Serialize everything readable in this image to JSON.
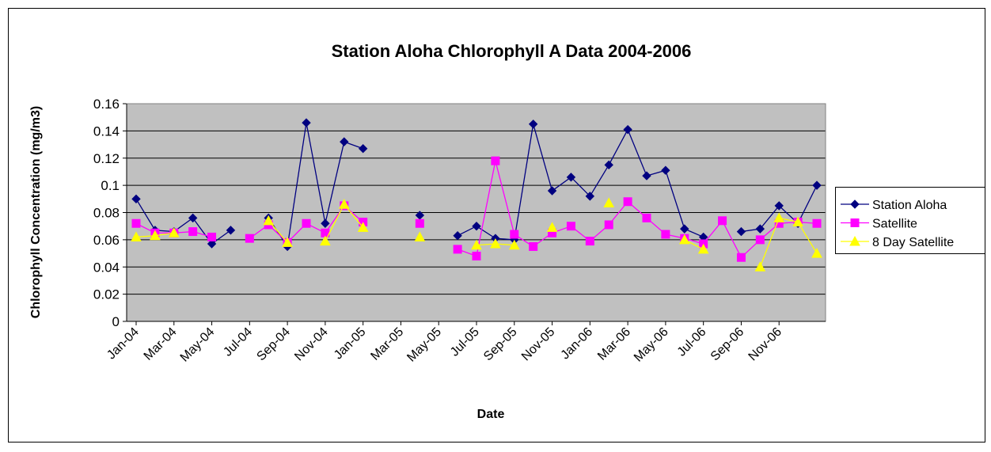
{
  "chart_data": {
    "type": "line",
    "title": "Station Aloha Chlorophyll A Data 2004-2006",
    "x_label": "Date",
    "y_label": "Chlorophyll Concentration (mg/m3)",
    "categories": [
      "Jan-04",
      null,
      "Mar-04",
      null,
      "May-04",
      null,
      "Jul-04",
      null,
      "Sep-04",
      null,
      "Nov-04",
      null,
      "Jan-05",
      null,
      "Mar-05",
      null,
      "May-05",
      null,
      "Jul-05",
      null,
      "Sep-05",
      null,
      "Nov-05",
      null,
      "Jan-06",
      null,
      "Mar-06",
      null,
      "May-06",
      null,
      "Jul-06",
      null,
      "Sep-06",
      null,
      "Nov-06",
      null,
      null
    ],
    "series": [
      {
        "name": "Station Aloha",
        "color": "#000080",
        "marker": "diamond",
        "values": [
          0.09,
          0.067,
          0.066,
          0.076,
          0.057,
          0.067,
          null,
          0.076,
          0.055,
          0.146,
          0.072,
          0.132,
          0.127,
          null,
          null,
          0.078,
          null,
          0.063,
          0.07,
          0.061,
          0.06,
          0.145,
          0.096,
          0.106,
          0.092,
          0.115,
          0.141,
          0.107,
          0.111,
          0.068,
          0.062,
          null,
          0.066,
          0.068,
          0.085,
          0.072,
          0.1
        ]
      },
      {
        "name": "Satellite",
        "color": "#ff00ff",
        "marker": "square",
        "values": [
          0.072,
          0.065,
          0.065,
          0.066,
          0.062,
          null,
          0.061,
          0.071,
          0.058,
          0.072,
          0.065,
          0.085,
          0.073,
          null,
          null,
          0.072,
          null,
          0.053,
          0.048,
          0.118,
          0.064,
          0.055,
          0.065,
          0.07,
          0.059,
          0.071,
          0.088,
          0.076,
          0.064,
          0.061,
          0.057,
          0.074,
          0.047,
          0.06,
          0.072,
          0.073,
          0.072
        ]
      },
      {
        "name": "8 Day Satellite",
        "color": "#ffff00",
        "marker": "triangle",
        "values": [
          0.062,
          0.063,
          0.065,
          null,
          null,
          null,
          null,
          0.074,
          0.058,
          null,
          0.059,
          0.086,
          0.069,
          null,
          null,
          0.062,
          null,
          null,
          0.056,
          0.057,
          0.056,
          null,
          0.069,
          null,
          null,
          0.087,
          null,
          null,
          null,
          0.06,
          0.053,
          null,
          null,
          0.04,
          0.076,
          0.073,
          0.05
        ]
      }
    ],
    "ylim": [
      0,
      0.16
    ],
    "yticks": [
      0,
      0.02,
      0.04,
      0.06,
      0.08,
      0.1,
      0.12,
      0.14,
      0.16
    ],
    "grid": true,
    "plot_background": "#c0c0c0",
    "legend_position": "right"
  }
}
